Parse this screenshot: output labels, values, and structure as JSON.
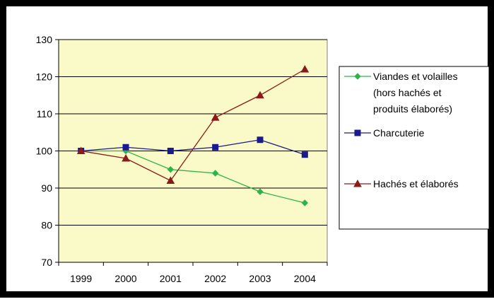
{
  "chart_data": {
    "type": "line",
    "x": [
      "1999",
      "2000",
      "2001",
      "2002",
      "2003",
      "2004"
    ],
    "ylim": [
      70,
      130
    ],
    "yticks": [
      70,
      80,
      90,
      100,
      110,
      120,
      130
    ],
    "grid": true,
    "legend_position": "right",
    "plot_background": "#fafac8",
    "series": [
      {
        "name": "Viandes et volailles (hors hachés et produits élaborés)",
        "legend_lines": [
          "Viandes et volailles",
          "(hors hachés et",
          "produits élaborés)"
        ],
        "values": [
          100,
          100,
          95,
          94,
          89,
          86
        ],
        "color": "#2db34a",
        "marker": "diamond"
      },
      {
        "name": "Charcuterie",
        "legend_lines": [
          "Charcuterie"
        ],
        "values": [
          100,
          101,
          100,
          101,
          103,
          99
        ],
        "color": "#1a1a8c",
        "marker": "square"
      },
      {
        "name": "Hachés et élaborés",
        "legend_lines": [
          "Hachés et élaborés"
        ],
        "values": [
          100,
          98,
          92,
          109,
          115,
          122
        ],
        "color": "#8b1a1a",
        "marker": "triangle"
      }
    ]
  }
}
